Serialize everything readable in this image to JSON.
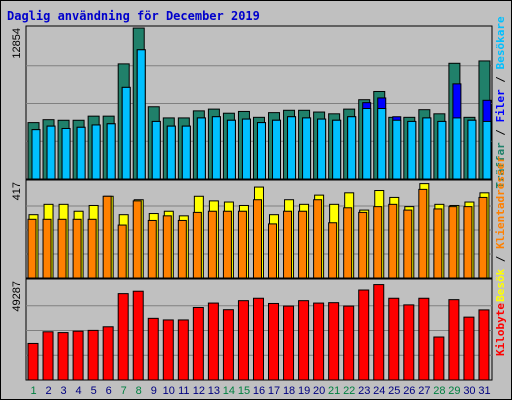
{
  "title": "Daglig användning för December 2019",
  "colors": {
    "background": "#c0c0c0",
    "title": "#0000cc",
    "hits": "#20806a",
    "files": "#0000ff",
    "pages": "#00c0ff",
    "visits": "#ffff00",
    "sites": "#ff8000",
    "kbytes": "#ff0000",
    "day_weekday": "#000080",
    "day_weekend": "#008040"
  },
  "legends": {
    "top": [
      "Träffar",
      "Filer",
      "Besökare"
    ],
    "mid": [
      "Besök",
      "Klientadresser"
    ],
    "bottom": [
      "Kilobyte"
    ],
    "separator": "/"
  },
  "chart_data": [
    {
      "type": "bar",
      "panel": "top",
      "max_label": "12854",
      "ylim": [
        0,
        12854
      ],
      "x": [
        1,
        2,
        3,
        4,
        5,
        6,
        7,
        8,
        9,
        10,
        11,
        12,
        13,
        14,
        15,
        16,
        17,
        18,
        19,
        20,
        21,
        22,
        23,
        24,
        25,
        26,
        27,
        28,
        29,
        30,
        31
      ],
      "series": [
        {
          "name": "Träffar",
          "values": [
            4800,
            5050,
            5000,
            5000,
            5350,
            5350,
            9800,
            12850,
            6150,
            5200,
            5200,
            5800,
            5950,
            5600,
            5750,
            5250,
            5650,
            5850,
            5850,
            5700,
            5550,
            5950,
            6750,
            7450,
            5250,
            5250,
            5900,
            5550,
            9850,
            5250,
            10050
          ]
        },
        {
          "name": "Filer",
          "values": [
            4200,
            4500,
            4300,
            4400,
            4600,
            4700,
            7800,
            11000,
            4900,
            4500,
            4500,
            5200,
            5300,
            5000,
            5100,
            4800,
            5000,
            5300,
            5200,
            5100,
            5000,
            5300,
            6500,
            6900,
            5300,
            4900,
            5200,
            4900,
            8100,
            5000,
            6700
          ]
        },
        {
          "name": "Besökare",
          "values": [
            4200,
            4500,
            4300,
            4400,
            4600,
            4700,
            7800,
            11000,
            4900,
            4500,
            4500,
            5200,
            5300,
            5000,
            5100,
            4800,
            5000,
            5300,
            5200,
            5100,
            5000,
            5300,
            6000,
            6000,
            5000,
            4900,
            5200,
            4900,
            5200,
            5000,
            4900
          ]
        }
      ]
    },
    {
      "type": "bar",
      "panel": "middle",
      "max_label": "417",
      "ylim": [
        0,
        417
      ],
      "x": [
        1,
        2,
        3,
        4,
        5,
        6,
        7,
        8,
        9,
        10,
        11,
        12,
        13,
        14,
        15,
        16,
        17,
        18,
        19,
        20,
        21,
        22,
        23,
        24,
        25,
        26,
        27,
        28,
        29,
        30,
        31
      ],
      "series": [
        {
          "name": "Besök",
          "values": [
            275,
            320,
            320,
            290,
            315,
            355,
            275,
            340,
            280,
            290,
            270,
            355,
            335,
            330,
            315,
            395,
            275,
            340,
            320,
            360,
            320,
            370,
            295,
            380,
            350,
            310,
            410,
            320,
            315,
            330,
            370
          ]
        },
        {
          "name": "Klientadresser",
          "values": [
            255,
            255,
            255,
            255,
            255,
            355,
            230,
            335,
            250,
            270,
            250,
            285,
            290,
            290,
            290,
            340,
            235,
            290,
            290,
            340,
            240,
            305,
            285,
            310,
            320,
            295,
            385,
            300,
            310,
            310,
            350
          ]
        }
      ]
    },
    {
      "type": "bar",
      "panel": "bottom",
      "max_label": "49287",
      "ylim": [
        0,
        49287
      ],
      "x": [
        1,
        2,
        3,
        4,
        5,
        6,
        7,
        8,
        9,
        10,
        11,
        12,
        13,
        14,
        15,
        16,
        17,
        18,
        19,
        20,
        21,
        22,
        23,
        24,
        25,
        26,
        27,
        28,
        29,
        30,
        31
      ],
      "series": [
        {
          "name": "Kilobyte",
          "values": [
            18200,
            24000,
            23600,
            24300,
            24700,
            26500,
            43000,
            44200,
            30700,
            29900,
            29900,
            36100,
            38300,
            35000,
            39500,
            40700,
            38100,
            36800,
            39500,
            38300,
            38500,
            36800,
            44800,
            47500,
            40700,
            37400,
            40700,
            21400,
            40000,
            31300,
            34900
          ]
        }
      ]
    }
  ]
}
